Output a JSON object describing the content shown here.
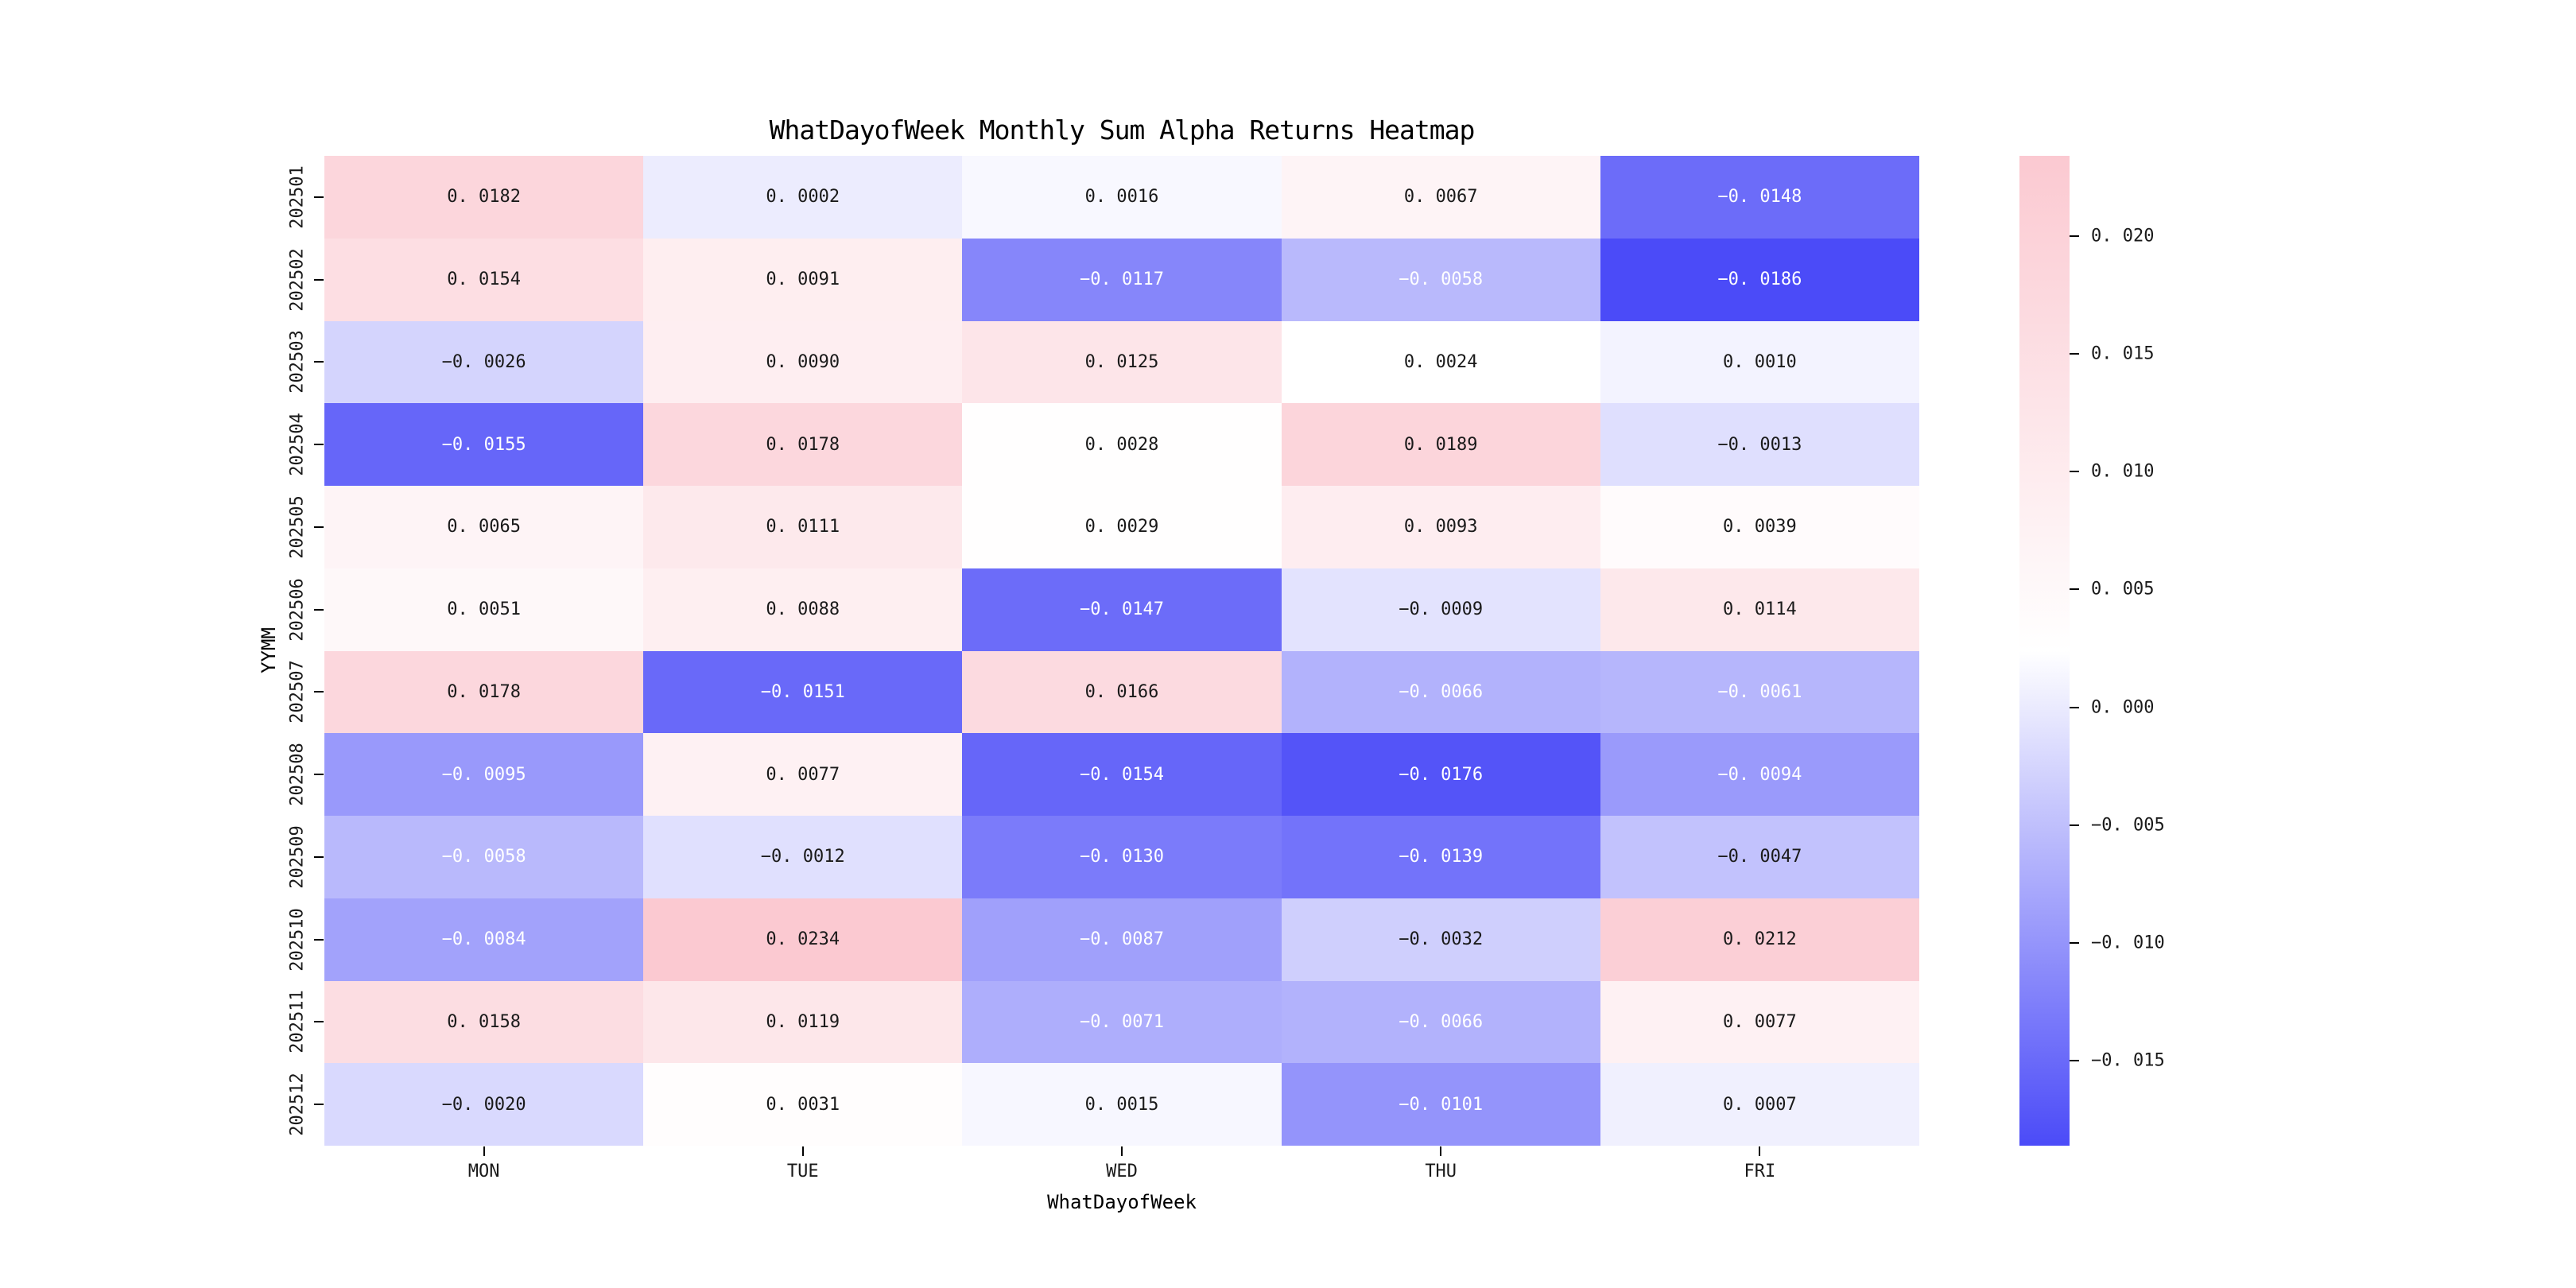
{
  "figure": {
    "background_color": "#ffffff"
  },
  "chart_data": {
    "type": "heatmap",
    "title": "WhatDayofWeek Monthly Sum Alpha Returns Heatmap",
    "xlabel": "WhatDayofWeek",
    "ylabel": "YYMM",
    "x_categories": [
      "MON",
      "TUE",
      "WED",
      "THU",
      "FRI"
    ],
    "y_categories": [
      "202501",
      "202502",
      "202503",
      "202504",
      "202505",
      "202506",
      "202507",
      "202508",
      "202509",
      "202510",
      "202511",
      "202512"
    ],
    "values": [
      [
        0.0182,
        0.0002,
        0.0016,
        0.0067,
        -0.0148
      ],
      [
        0.0154,
        0.0091,
        -0.0117,
        -0.0058,
        -0.0186
      ],
      [
        -0.0026,
        0.009,
        0.0125,
        0.0024,
        0.001
      ],
      [
        -0.0155,
        0.0178,
        0.0028,
        0.0189,
        -0.0013
      ],
      [
        0.0065,
        0.0111,
        0.0029,
        0.0093,
        0.0039
      ],
      [
        0.0051,
        0.0088,
        -0.0147,
        -0.0009,
        0.0114
      ],
      [
        0.0178,
        -0.0151,
        0.0166,
        -0.0066,
        -0.0061
      ],
      [
        -0.0095,
        0.0077,
        -0.0154,
        -0.0176,
        -0.0094
      ],
      [
        -0.0058,
        -0.0012,
        -0.013,
        -0.0139,
        -0.0047
      ],
      [
        -0.0084,
        0.0234,
        -0.0087,
        -0.0032,
        0.0212
      ],
      [
        0.0158,
        0.0119,
        -0.0071,
        -0.0066,
        0.0077
      ],
      [
        -0.002,
        0.0031,
        0.0015,
        -0.0101,
        0.0007
      ]
    ],
    "vmin": -0.0186,
    "vmax": 0.0234,
    "annotation_decimals": 4,
    "grid": false,
    "colorbar": {
      "position": "right",
      "tick_values": [
        0.02,
        0.015,
        0.01,
        0.005,
        0.0,
        -0.005,
        -0.01,
        -0.015
      ],
      "tick_labels": [
        "0.020",
        "0.015",
        "0.010",
        "0.005",
        "0.000",
        "-0.005",
        "-0.010",
        "-0.015"
      ],
      "tick_decimals": 3
    },
    "colors": {
      "negative_end": "#4b4bf8",
      "midpoint": "#ffffff",
      "positive_end": "#fbc9d1",
      "annotation_dark": "#1a1a1a",
      "annotation_light": "#ffffff",
      "white_text_threshold": -0.005
    }
  }
}
